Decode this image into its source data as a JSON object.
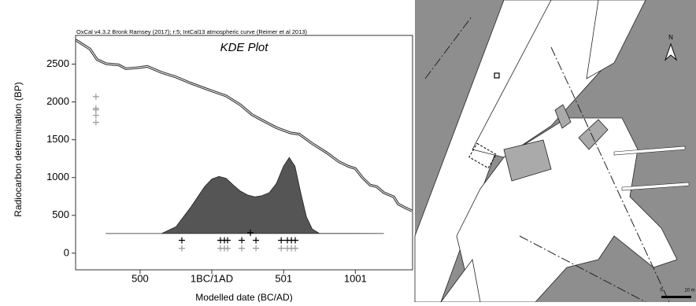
{
  "chart_data": {
    "type": "kde",
    "header": "OxCal v4.3.2 Bronk Ramsey (2017); r:5; IntCal13 atmospheric curve (Reimer et al 2013)",
    "title": "KDE  Plot",
    "xlabel": "Modelled date (BC/AD)",
    "ylabel": "Radiocarbon determination (BP)",
    "xlim": [
      -950,
      1400
    ],
    "ylim": [
      -220,
      2880
    ],
    "xticks": [
      {
        "value": -500,
        "label": "500"
      },
      {
        "value": 0,
        "label": "1BC/1AD"
      },
      501,
      1001
    ],
    "yticks": [
      0,
      500,
      1000,
      1500,
      2000,
      2500
    ],
    "series": [
      {
        "type": "line",
        "color": "#333333",
        "x": [
          -950,
          -900,
          -850,
          -800,
          -736,
          -650,
          -600,
          -516,
          -450,
          -350,
          -250,
          -150,
          -50,
          5,
          100,
          200,
          280,
          350,
          450,
          550,
          610,
          700,
          800,
          885,
          950,
          1000,
          1050,
          1104,
          1150,
          1200,
          1269,
          1300,
          1350,
          1395
        ],
        "values": [
          2820,
          2760,
          2700,
          2560,
          2505,
          2490,
          2440,
          2453,
          2470,
          2390,
          2330,
          2250,
          2180,
          2143,
          2080,
          1960,
          1832,
          1760,
          1660,
          1590,
          1574,
          1450,
          1330,
          1211,
          1150,
          1120,
          1000,
          900,
          880,
          800,
          745,
          650,
          600,
          559
        ]
      },
      {
        "type": "area",
        "color": "#555555",
        "x": [
          -740,
          -350,
          -250,
          -150,
          -50,
          0,
          50,
          100,
          150,
          200,
          250,
          300,
          350,
          400,
          450,
          500,
          540,
          580,
          620,
          660,
          700,
          750,
          1200
        ],
        "values": [
          260,
          260,
          350,
          600,
          880,
          980,
          1015,
          990,
          900,
          820,
          770,
          745,
          760,
          800,
          920,
          1150,
          1265,
          1150,
          800,
          480,
          320,
          262,
          260
        ]
      },
      {
        "type": "scatter",
        "color": "#000000",
        "x": [
          -209,
          60,
          88,
          110,
          209,
          308,
          484,
          527,
          555,
          582,
          269
        ],
        "values": [
          170,
          170,
          170,
          170,
          170,
          170,
          170,
          170,
          170,
          170,
          270
        ]
      },
      {
        "type": "scatter",
        "color": "#999999",
        "x": [
          -209,
          60,
          88,
          110,
          209,
          308,
          484,
          527,
          555,
          582,
          -808,
          -808,
          -808,
          -808,
          -808
        ],
        "values": [
          65,
          65,
          65,
          65,
          65,
          65,
          65,
          65,
          65,
          65,
          2070,
          1915,
          1895,
          1822,
          1729
        ]
      }
    ]
  },
  "map": {
    "north": "N",
    "scale_start": "0",
    "scale_end": "10 m"
  }
}
